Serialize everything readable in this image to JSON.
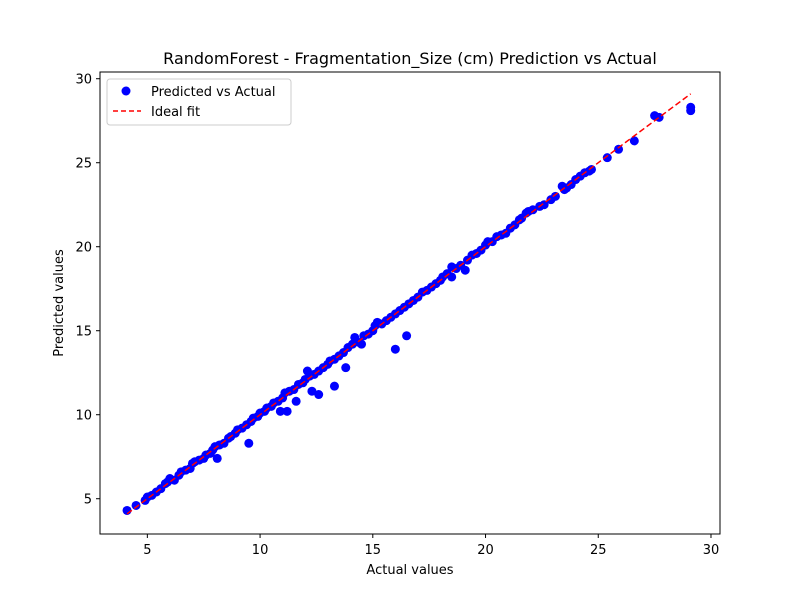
{
  "chart_data": {
    "type": "scatter",
    "title": "RandomForest - Fragmentation_Size (cm) Prediction vs Actual",
    "xlabel": "Actual values",
    "ylabel": "Predicted values",
    "xlim": [
      2.9,
      30.4
    ],
    "ylim": [
      2.9,
      30.4
    ],
    "xticks": [
      5,
      10,
      15,
      20,
      25,
      30
    ],
    "yticks": [
      5,
      10,
      15,
      20,
      25,
      30
    ],
    "grid": false,
    "legend_position": "upper-left",
    "series": [
      {
        "name": "Predicted vs Actual",
        "kind": "scatter",
        "color": "#0000ff",
        "points": [
          [
            4.1,
            4.3
          ],
          [
            4.5,
            4.6
          ],
          [
            4.9,
            4.9
          ],
          [
            5.0,
            5.1
          ],
          [
            5.2,
            5.2
          ],
          [
            5.4,
            5.4
          ],
          [
            5.6,
            5.6
          ],
          [
            5.8,
            5.9
          ],
          [
            5.9,
            6.0
          ],
          [
            6.0,
            6.2
          ],
          [
            6.2,
            6.1
          ],
          [
            6.4,
            6.4
          ],
          [
            6.5,
            6.6
          ],
          [
            6.7,
            6.7
          ],
          [
            6.9,
            6.8
          ],
          [
            7.0,
            7.1
          ],
          [
            7.1,
            7.2
          ],
          [
            7.3,
            7.3
          ],
          [
            7.5,
            7.4
          ],
          [
            7.6,
            7.6
          ],
          [
            7.8,
            7.7
          ],
          [
            7.9,
            7.9
          ],
          [
            8.0,
            8.1
          ],
          [
            8.1,
            7.4
          ],
          [
            8.2,
            8.2
          ],
          [
            8.4,
            8.3
          ],
          [
            8.6,
            8.6
          ],
          [
            8.7,
            8.7
          ],
          [
            8.9,
            8.9
          ],
          [
            9.0,
            9.1
          ],
          [
            9.2,
            9.2
          ],
          [
            9.4,
            9.4
          ],
          [
            9.5,
            8.3
          ],
          [
            9.6,
            9.6
          ],
          [
            9.7,
            9.8
          ],
          [
            9.9,
            9.9
          ],
          [
            10.0,
            10.1
          ],
          [
            10.2,
            10.2
          ],
          [
            10.3,
            10.4
          ],
          [
            10.5,
            10.5
          ],
          [
            10.6,
            10.7
          ],
          [
            10.8,
            10.8
          ],
          [
            10.9,
            10.2
          ],
          [
            11.0,
            11.0
          ],
          [
            11.1,
            11.3
          ],
          [
            11.2,
            10.2
          ],
          [
            11.3,
            11.4
          ],
          [
            11.5,
            11.5
          ],
          [
            11.6,
            10.8
          ],
          [
            11.7,
            11.8
          ],
          [
            11.9,
            11.9
          ],
          [
            12.0,
            12.1
          ],
          [
            12.1,
            12.6
          ],
          [
            12.2,
            12.3
          ],
          [
            12.3,
            11.4
          ],
          [
            12.4,
            12.4
          ],
          [
            12.6,
            11.2
          ],
          [
            12.6,
            12.6
          ],
          [
            12.8,
            12.8
          ],
          [
            13.0,
            13.0
          ],
          [
            13.1,
            13.2
          ],
          [
            13.3,
            13.3
          ],
          [
            13.3,
            11.7
          ],
          [
            13.5,
            13.5
          ],
          [
            13.7,
            13.7
          ],
          [
            13.8,
            12.8
          ],
          [
            13.9,
            14.0
          ],
          [
            14.1,
            14.2
          ],
          [
            14.2,
            14.6
          ],
          [
            14.4,
            14.3
          ],
          [
            14.5,
            14.2
          ],
          [
            14.6,
            14.7
          ],
          [
            14.8,
            14.8
          ],
          [
            15.0,
            15.0
          ],
          [
            15.1,
            15.3
          ],
          [
            15.2,
            15.5
          ],
          [
            15.4,
            15.4
          ],
          [
            15.6,
            15.6
          ],
          [
            15.8,
            15.8
          ],
          [
            16.0,
            13.9
          ],
          [
            16.0,
            16.0
          ],
          [
            16.2,
            16.2
          ],
          [
            16.4,
            16.4
          ],
          [
            16.5,
            14.7
          ],
          [
            16.6,
            16.6
          ],
          [
            16.8,
            16.8
          ],
          [
            17.0,
            17.0
          ],
          [
            17.2,
            17.3
          ],
          [
            17.4,
            17.4
          ],
          [
            17.6,
            17.6
          ],
          [
            17.8,
            17.8
          ],
          [
            18.0,
            18.0
          ],
          [
            18.1,
            18.2
          ],
          [
            18.3,
            18.4
          ],
          [
            18.5,
            18.8
          ],
          [
            18.5,
            18.2
          ],
          [
            18.7,
            18.7
          ],
          [
            18.9,
            18.9
          ],
          [
            19.1,
            18.6
          ],
          [
            19.2,
            19.2
          ],
          [
            19.4,
            19.5
          ],
          [
            19.6,
            19.6
          ],
          [
            19.8,
            19.8
          ],
          [
            20.0,
            20.1
          ],
          [
            20.1,
            20.3
          ],
          [
            20.3,
            20.3
          ],
          [
            20.5,
            20.6
          ],
          [
            20.7,
            20.7
          ],
          [
            20.9,
            20.8
          ],
          [
            21.1,
            21.1
          ],
          [
            21.3,
            21.3
          ],
          [
            21.5,
            21.6
          ],
          [
            21.6,
            21.7
          ],
          [
            21.8,
            22.0
          ],
          [
            21.9,
            22.1
          ],
          [
            22.1,
            22.2
          ],
          [
            22.4,
            22.4
          ],
          [
            22.6,
            22.5
          ],
          [
            22.9,
            22.8
          ],
          [
            23.1,
            23.0
          ],
          [
            23.4,
            23.6
          ],
          [
            23.5,
            23.4
          ],
          [
            23.6,
            23.5
          ],
          [
            23.8,
            23.7
          ],
          [
            24.0,
            24.0
          ],
          [
            24.2,
            24.2
          ],
          [
            24.4,
            24.4
          ],
          [
            24.6,
            24.5
          ],
          [
            24.7,
            24.6
          ],
          [
            25.4,
            25.3
          ],
          [
            25.9,
            25.8
          ],
          [
            26.6,
            26.3
          ],
          [
            27.5,
            27.8
          ],
          [
            27.7,
            27.7
          ],
          [
            29.1,
            28.1
          ],
          [
            29.1,
            28.3
          ]
        ]
      },
      {
        "name": "Ideal fit",
        "kind": "line",
        "style": "dashed",
        "color": "#ff0000",
        "points": [
          [
            4.1,
            4.1
          ],
          [
            29.1,
            29.1
          ]
        ]
      }
    ]
  }
}
